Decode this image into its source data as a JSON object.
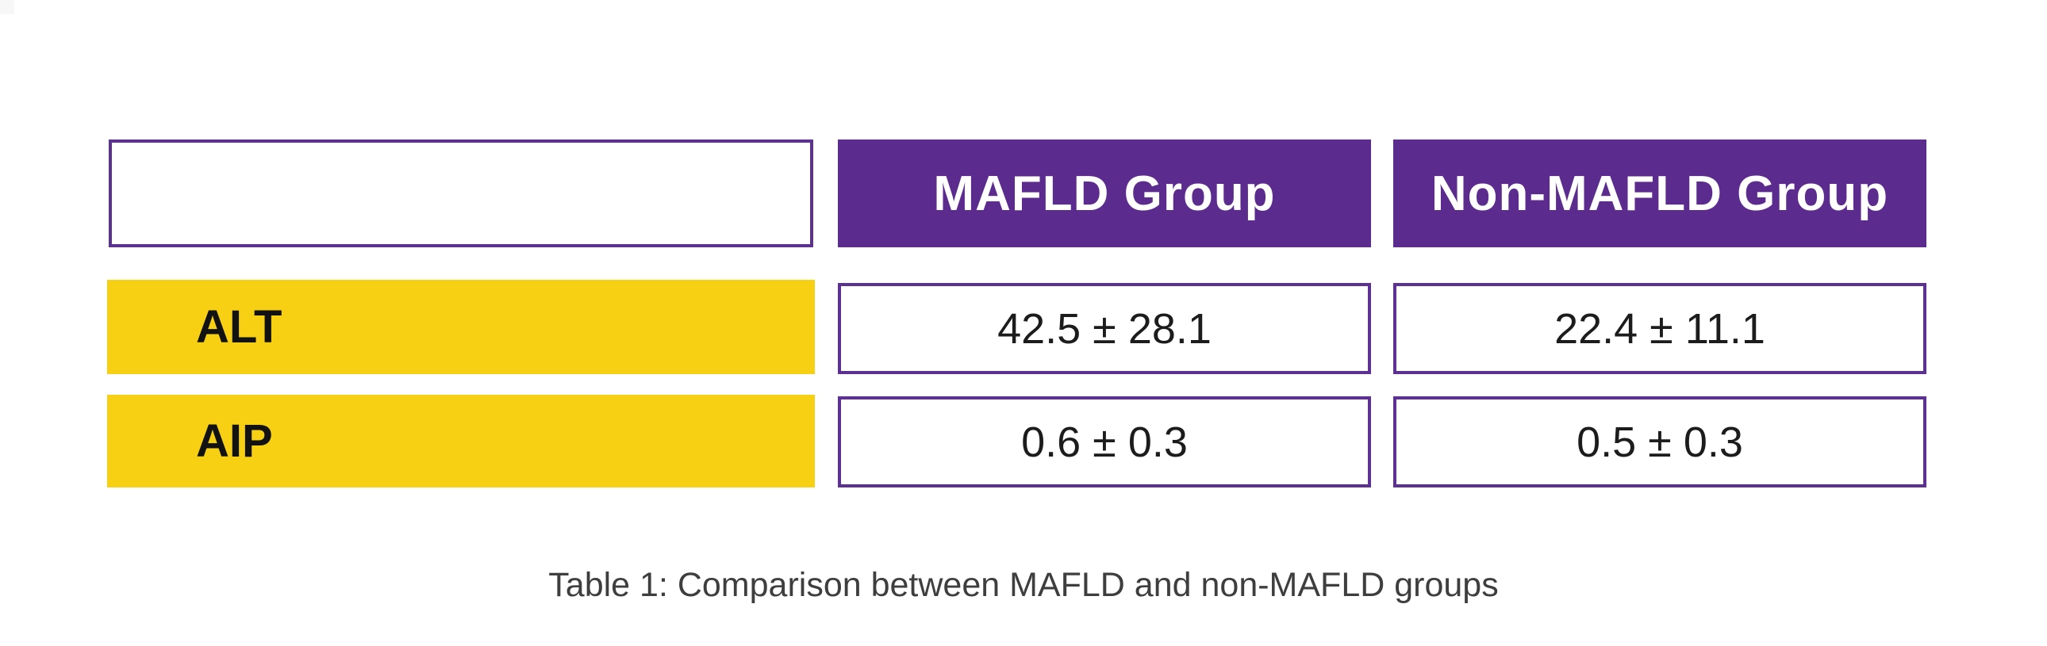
{
  "table": {
    "header": {
      "blank": "",
      "mafld": "MAFLD Group",
      "non_mafld": "Non-MAFLD Group"
    },
    "rows": [
      {
        "label": "ALT",
        "mafld": "42.5 ± 28.1",
        "non_mafld": "22.4 ± 11.1"
      },
      {
        "label": "AIP",
        "mafld": "0.6 ± 0.3",
        "non_mafld": "0.5 ± 0.3"
      }
    ]
  },
  "caption": {
    "text": "Table 1: Comparison between MAFLD and non-MAFLD groups"
  },
  "colors": {
    "header_purple": "#5b2c8d",
    "border_purple": "#5c3192",
    "row_label_yellow": "#f7d013",
    "header_text": "#ffffff",
    "label_text": "#121212",
    "value_text": "#1c1c1c",
    "caption_text": "#3e3e3e",
    "background": "#ffffff"
  },
  "chart_data": {
    "type": "table",
    "title": "Table 1: Comparison between MAFLD and non-MAFLD groups",
    "columns": [
      "",
      "MAFLD Group",
      "Non-MAFLD Group"
    ],
    "categories": [
      "ALT",
      "AIP"
    ],
    "rows": [
      [
        "ALT",
        "42.5 ± 28.1",
        "22.4 ± 11.1"
      ],
      [
        "AIP",
        "0.6 ± 0.3",
        "0.5 ± 0.3"
      ]
    ],
    "series": [
      {
        "name": "MAFLD Group",
        "values": [
          {
            "mean": 42.5,
            "sd": 28.1
          },
          {
            "mean": 0.6,
            "sd": 0.3
          }
        ]
      },
      {
        "name": "Non-MAFLD Group",
        "values": [
          {
            "mean": 22.4,
            "sd": 11.1
          },
          {
            "mean": 0.5,
            "sd": 0.3
          }
        ]
      }
    ],
    "legend_position": "none",
    "grid": false
  }
}
